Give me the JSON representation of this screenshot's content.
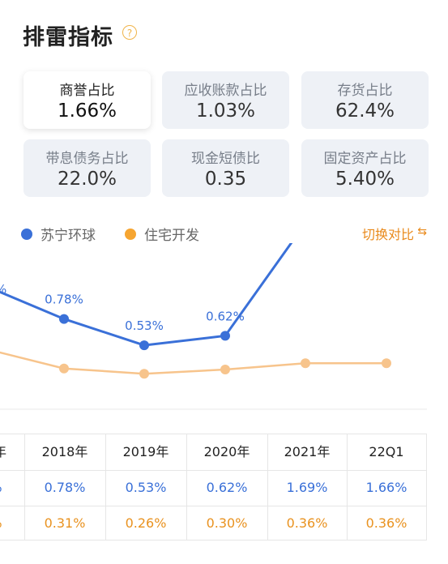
{
  "header": {
    "title": "排雷指标",
    "help_icon": "question-circle-icon"
  },
  "cards": [
    {
      "label": "商誉占比",
      "value": "1.66%",
      "active": true
    },
    {
      "label": "应收账款占比",
      "value": "1.03%",
      "active": false
    },
    {
      "label": "存货占比",
      "value": "62.4%",
      "active": false
    },
    {
      "label": "带息债务占比",
      "value": "22.0%",
      "active": false
    },
    {
      "label": "现金短债比",
      "value": "0.35",
      "active": false
    },
    {
      "label": "固定资产占比",
      "value": "5.40%",
      "active": false
    }
  ],
  "legend": {
    "items": [
      {
        "name": "苏宁环球",
        "color": "#3a70d8"
      },
      {
        "name": "住宅开发",
        "color": "#f6a531"
      }
    ],
    "toggle_label": "切换对比",
    "toggle_icon": "switch-icon"
  },
  "chart_data": {
    "type": "line",
    "categories": [
      "",
      "2018年",
      "2019年",
      "2020年",
      "2021年",
      "22Q1"
    ],
    "series": [
      {
        "name": "苏宁环球",
        "color": "#3a70d8",
        "values": [
          1.1,
          0.78,
          0.53,
          0.62,
          1.69,
          1.66
        ],
        "labels": [
          "%",
          "0.78%",
          "0.53%",
          "0.62%",
          "1.69%",
          "1.66%"
        ]
      },
      {
        "name": "住宅开发",
        "color": "#f7c48c",
        "values": [
          0.5,
          0.31,
          0.26,
          0.3,
          0.36,
          0.36
        ]
      }
    ]
  },
  "table": {
    "headers": [
      "年",
      "2018年",
      "2019年",
      "2020年",
      "2021年",
      "22Q1"
    ],
    "rows": [
      [
        "%",
        "0.78%",
        "0.53%",
        "0.62%",
        "1.69%",
        "1.66%"
      ],
      [
        "%",
        "0.31%",
        "0.26%",
        "0.30%",
        "0.36%",
        "0.36%"
      ]
    ]
  }
}
